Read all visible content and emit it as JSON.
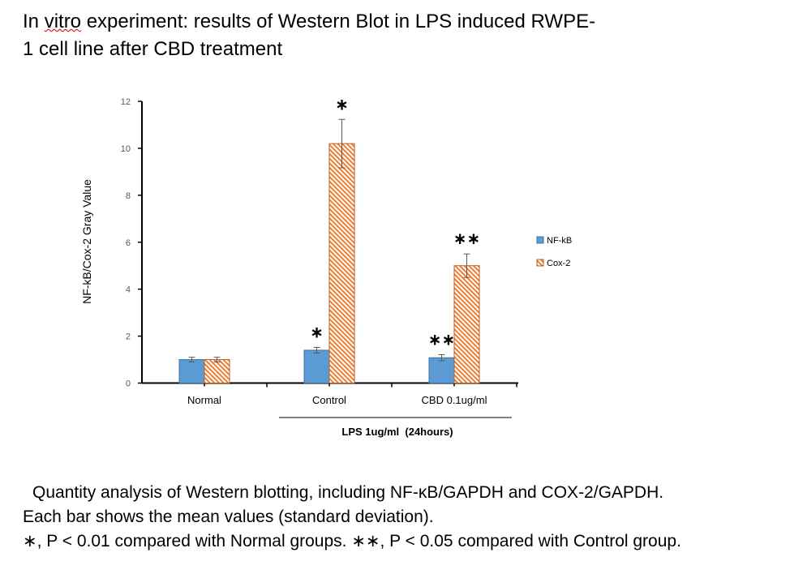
{
  "title": {
    "line1_a": "In ",
    "line1_spell": "vitro",
    "line1_b": " experiment: results of Western Blot in LPS induced RWPE-",
    "line2": "1 cell line  after CBD treatment"
  },
  "chart_data": {
    "type": "bar",
    "categories": [
      "Normal",
      "Control",
      "CBD 0.1ug/ml"
    ],
    "series": [
      {
        "name": "NF-kB",
        "values": [
          1.0,
          1.4,
          1.08
        ],
        "errors": [
          0.1,
          0.12,
          0.13
        ],
        "annotations": [
          "",
          "*",
          "**"
        ],
        "color": "#5b9bd5",
        "fill": "solid"
      },
      {
        "name": "Cox-2",
        "values": [
          1.0,
          10.2,
          5.0
        ],
        "errors": [
          0.1,
          1.03,
          0.5
        ],
        "annotations": [
          "",
          "*",
          "**"
        ],
        "color": "#ed7d31",
        "fill": "diagonal-hatch"
      }
    ],
    "ylabel": "NF-kB/Cox-2 Gray Value",
    "xlabel": "",
    "ylim": [
      0,
      12
    ],
    "yticks": [
      "0",
      "2",
      "4",
      "6",
      "8",
      "10",
      "12"
    ],
    "group_label": "LPS 1ug/ml  (24hours)",
    "group_label_spans": [
      "Control",
      "CBD 0.1ug/ml"
    ],
    "legend_position": "right",
    "grid": false
  },
  "caption": {
    "line1": "Quantity analysis of Western blotting, including NF-κB/GAPDH and COX-2/GAPDH.",
    "line2": "Each bar shows the mean values (standard deviation).",
    "line3": "∗, P < 0.01 compared with Normal groups. ∗∗, P < 0.05 compared with Control group."
  }
}
